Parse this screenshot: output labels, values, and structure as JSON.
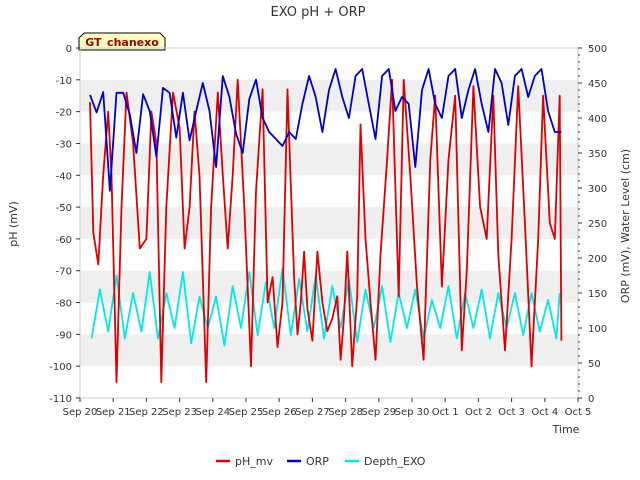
{
  "chart_data": {
    "type": "line",
    "title": "EXO pH + ORP",
    "xlabel": "Time",
    "ylabel_left": "pH (mV)",
    "ylabel_right": "ORP (mV), Water Level (cm)",
    "station_label": "GT_chanexo",
    "x_ticks": [
      "Sep 20",
      "Sep 21",
      "Sep 22",
      "Sep 23",
      "Sep 24",
      "Sep 25",
      "Sep 26",
      "Sep 27",
      "Sep 28",
      "Sep 29",
      "Sep 30",
      "Oct 1",
      "Oct 2",
      "Oct 3",
      "Oct 4",
      "Oct 5"
    ],
    "xlim": [
      0,
      15
    ],
    "ylim_left": [
      -110,
      0
    ],
    "yticks_left": [
      0,
      -10,
      -20,
      -30,
      -40,
      -50,
      -60,
      -70,
      -80,
      -90,
      -100,
      -110
    ],
    "ylim_right": [
      0,
      500
    ],
    "yticks_right": [
      0,
      50,
      100,
      150,
      200,
      250,
      300,
      350,
      400,
      450,
      500
    ],
    "grid": "horizontal bands",
    "legend_position": "bottom-center",
    "series": [
      {
        "name": "pH_mv",
        "axis": "left",
        "color": "#dd0000",
        "x": [
          0.3,
          0.4,
          0.55,
          0.7,
          0.85,
          0.95,
          1.1,
          1.25,
          1.4,
          1.6,
          1.8,
          2.0,
          2.15,
          2.3,
          2.45,
          2.6,
          2.8,
          3.0,
          3.15,
          3.3,
          3.45,
          3.6,
          3.8,
          3.95,
          4.15,
          4.3,
          4.45,
          4.6,
          4.75,
          4.95,
          5.15,
          5.3,
          5.5,
          5.65,
          5.8,
          5.95,
          6.1,
          6.25,
          6.35,
          6.45,
          6.55,
          6.65,
          6.75,
          6.85,
          7.0,
          7.15,
          7.3,
          7.45,
          7.6,
          7.75,
          7.85,
          7.95,
          8.05,
          8.2,
          8.35,
          8.45,
          8.6,
          8.75,
          8.9,
          9.05,
          9.25,
          9.4,
          9.6,
          9.75,
          9.95,
          10.15,
          10.35,
          10.55,
          10.7,
          10.9,
          11.1,
          11.3,
          11.5,
          11.65,
          11.85,
          12.05,
          12.25,
          12.45,
          12.6,
          12.8,
          13.0,
          13.2,
          13.4,
          13.6,
          13.8,
          13.95,
          14.15,
          14.3,
          14.45
        ],
        "y": [
          -17,
          -58,
          -68,
          -40,
          -20,
          -40,
          -105,
          -50,
          -14,
          -30,
          -63,
          -60,
          -20,
          -30,
          -105,
          -50,
          -14,
          -25,
          -63,
          -50,
          -20,
          -40,
          -105,
          -50,
          -14,
          -40,
          -63,
          -40,
          -10,
          -50,
          -100,
          -45,
          -13,
          -80,
          -72,
          -94,
          -80,
          -13,
          -43,
          -72,
          -90,
          -80,
          -64,
          -82,
          -92,
          -64,
          -80,
          -89,
          -85,
          -78,
          -98,
          -85,
          -64,
          -100,
          -78,
          -24,
          -60,
          -80,
          -98,
          -65,
          -35,
          -10,
          -78,
          -10,
          -40,
          -75,
          -98,
          -35,
          -15,
          -75,
          -35,
          -15,
          -95,
          -70,
          -12,
          -50,
          -60,
          -15,
          -65,
          -95,
          -60,
          -12,
          -55,
          -100,
          -60,
          -15,
          -55,
          -60,
          -15
        ],
        "y_extra": [
          -92
        ]
      },
      {
        "name": "ORP",
        "axis": "right",
        "color": "#0000cc",
        "x": [
          0.3,
          0.5,
          0.7,
          0.9,
          1.1,
          1.3,
          1.5,
          1.7,
          1.9,
          2.1,
          2.3,
          2.5,
          2.7,
          2.9,
          3.1,
          3.3,
          3.5,
          3.7,
          3.9,
          4.1,
          4.3,
          4.5,
          4.7,
          4.9,
          5.1,
          5.3,
          5.5,
          5.7,
          5.9,
          6.1,
          6.3,
          6.5,
          6.7,
          6.9,
          7.1,
          7.3,
          7.5,
          7.7,
          7.9,
          8.1,
          8.3,
          8.5,
          8.7,
          8.9,
          9.1,
          9.3,
          9.5,
          9.7,
          9.9,
          10.1,
          10.3,
          10.5,
          10.7,
          10.9,
          11.1,
          11.3,
          11.5,
          11.7,
          11.9,
          12.1,
          12.3,
          12.5,
          12.7,
          12.9,
          13.1,
          13.3,
          13.5,
          13.7,
          13.9,
          14.1,
          14.3,
          14.5
        ],
        "y": [
          433,
          408,
          437,
          296,
          436,
          436,
          405,
          350,
          434,
          410,
          345,
          443,
          436,
          372,
          436,
          368,
          410,
          450,
          410,
          330,
          460,
          430,
          378,
          350,
          427,
          455,
          400,
          380,
          370,
          360,
          380,
          370,
          420,
          460,
          430,
          380,
          440,
          470,
          430,
          400,
          460,
          470,
          420,
          370,
          460,
          470,
          410,
          430,
          420,
          330,
          440,
          470,
          420,
          400,
          460,
          470,
          400,
          440,
          470,
          420,
          380,
          470,
          450,
          390,
          460,
          470,
          430,
          460,
          470,
          410,
          380,
          380
        ]
      },
      {
        "name": "Depth_EXO",
        "axis": "right",
        "color": "#00e8e8",
        "x": [
          0.35,
          0.6,
          0.85,
          1.1,
          1.35,
          1.6,
          1.85,
          2.1,
          2.35,
          2.6,
          2.85,
          3.1,
          3.35,
          3.6,
          3.85,
          4.1,
          4.35,
          4.6,
          4.85,
          5.1,
          5.35,
          5.6,
          5.85,
          6.1,
          6.35,
          6.6,
          6.85,
          7.1,
          7.35,
          7.6,
          7.85,
          8.1,
          8.35,
          8.6,
          8.85,
          9.1,
          9.35,
          9.6,
          9.85,
          10.1,
          10.35,
          10.6,
          10.85,
          11.1,
          11.35,
          11.6,
          11.85,
          12.1,
          12.35,
          12.6,
          12.85,
          13.1,
          13.35,
          13.6,
          13.85,
          14.1,
          14.35,
          14.45
        ],
        "y": [
          85,
          155,
          95,
          175,
          85,
          150,
          95,
          180,
          85,
          150,
          100,
          180,
          78,
          145,
          100,
          145,
          75,
          160,
          100,
          180,
          90,
          165,
          100,
          185,
          90,
          170,
          95,
          175,
          85,
          160,
          100,
          170,
          80,
          155,
          100,
          160,
          80,
          150,
          100,
          155,
          85,
          140,
          100,
          160,
          85,
          150,
          100,
          155,
          85,
          150,
          100,
          150,
          90,
          150,
          95,
          140,
          85,
          150
        ]
      }
    ]
  }
}
